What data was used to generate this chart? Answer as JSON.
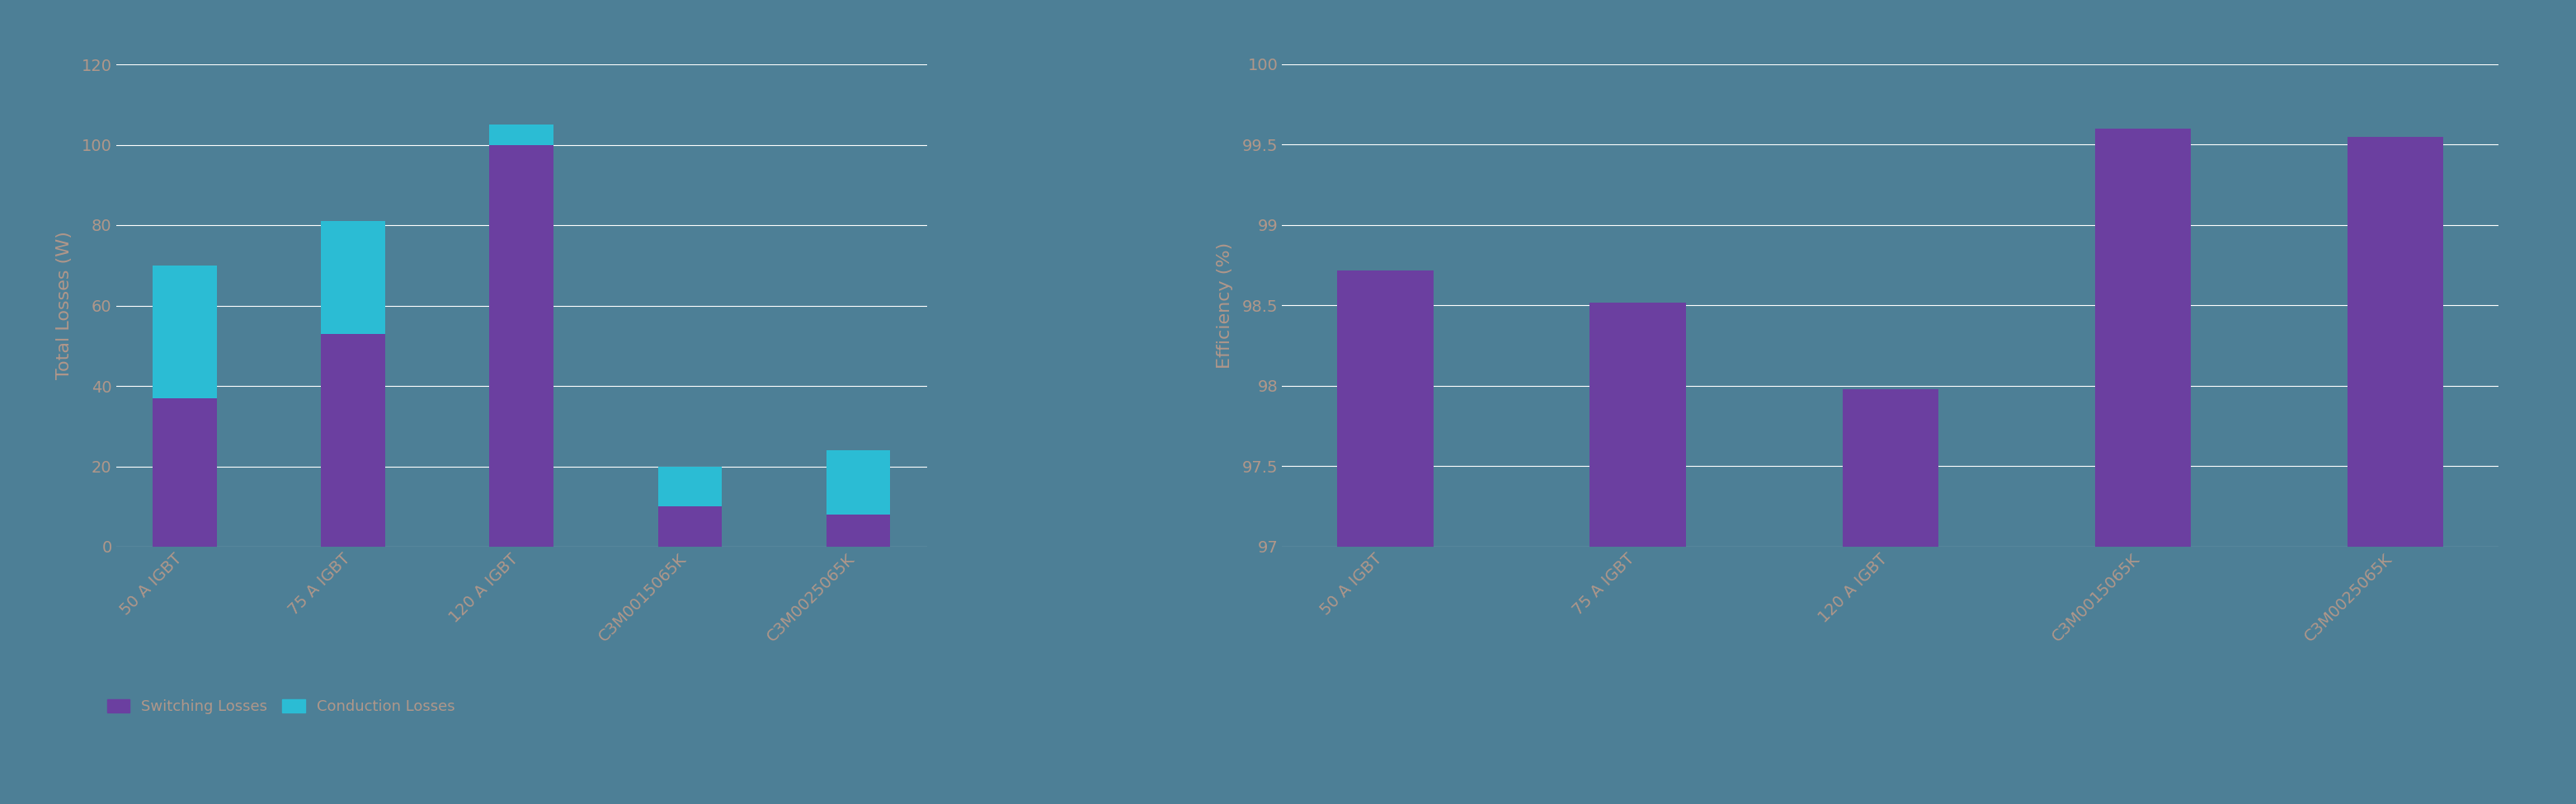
{
  "chart1": {
    "categories": [
      "50 A IGBT",
      "75 A IGBT",
      "120 A IGBT",
      "C3M0015065K",
      "C3M0025065K"
    ],
    "switching_losses": [
      37,
      53,
      100,
      10,
      8
    ],
    "conduction_losses": [
      33,
      28,
      5,
      10,
      16
    ],
    "ylabel": "Total Losses (W)",
    "ylim": [
      0,
      120
    ],
    "yticks": [
      0,
      20,
      40,
      60,
      80,
      100,
      120
    ],
    "switching_color": "#6B3FA0",
    "conduction_color": "#2BBCD4"
  },
  "chart2": {
    "categories": [
      "50 A IGBT",
      "75 A IGBT",
      "120 A IGBT",
      "C3M0015065K",
      "C3M0025065K"
    ],
    "efficiency": [
      98.72,
      98.52,
      97.98,
      99.6,
      99.55
    ],
    "ylabel": "Efficiency (%)",
    "ylim": [
      97,
      100
    ],
    "yticks": [
      97,
      97.5,
      98,
      98.5,
      99,
      99.5,
      100
    ],
    "bar_color": "#6B3FA0"
  },
  "background_color": "#4d7f96",
  "text_color": "#b0978a",
  "legend_switching": "Switching Losses",
  "legend_conduction": "Conduction Losses",
  "tick_fontsize": 14,
  "label_fontsize": 16,
  "bar_width": 0.38
}
